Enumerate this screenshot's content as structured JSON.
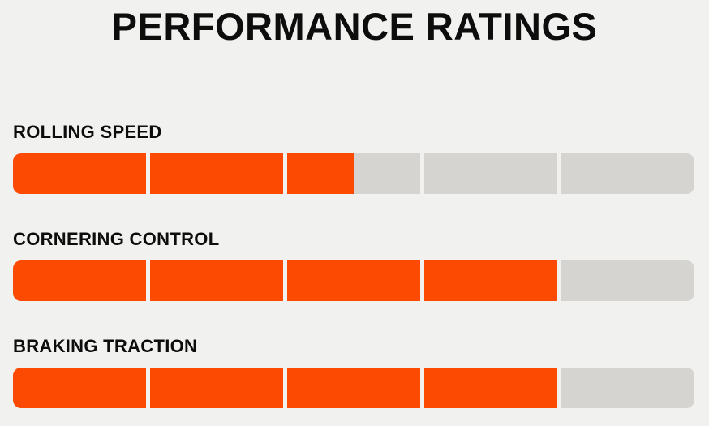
{
  "title": "PERFORMANCE RATINGS",
  "colors": {
    "background": "#F1F1EF",
    "fill": "#FC4A03",
    "track": "#D5D4D1",
    "text": "#0D0D0D"
  },
  "scale": {
    "max": 5,
    "segments": 5
  },
  "ratings": [
    {
      "label": "ROLLING SPEED",
      "value": 2.5,
      "max": 5
    },
    {
      "label": "CORNERING CONTROL",
      "value": 4,
      "max": 5
    },
    {
      "label": "BRAKING TRACTION",
      "value": 4,
      "max": 5
    }
  ],
  "chart_data": {
    "type": "bar",
    "orientation": "horizontal",
    "title": "PERFORMANCE RATINGS",
    "categories": [
      "ROLLING SPEED",
      "CORNERING CONTROL",
      "BRAKING TRACTION"
    ],
    "values": [
      2.5,
      4,
      4
    ],
    "value_range": [
      0,
      5
    ],
    "segments_per_bar": 5,
    "xlabel": "",
    "ylabel": "",
    "grid": false,
    "legend": false
  }
}
